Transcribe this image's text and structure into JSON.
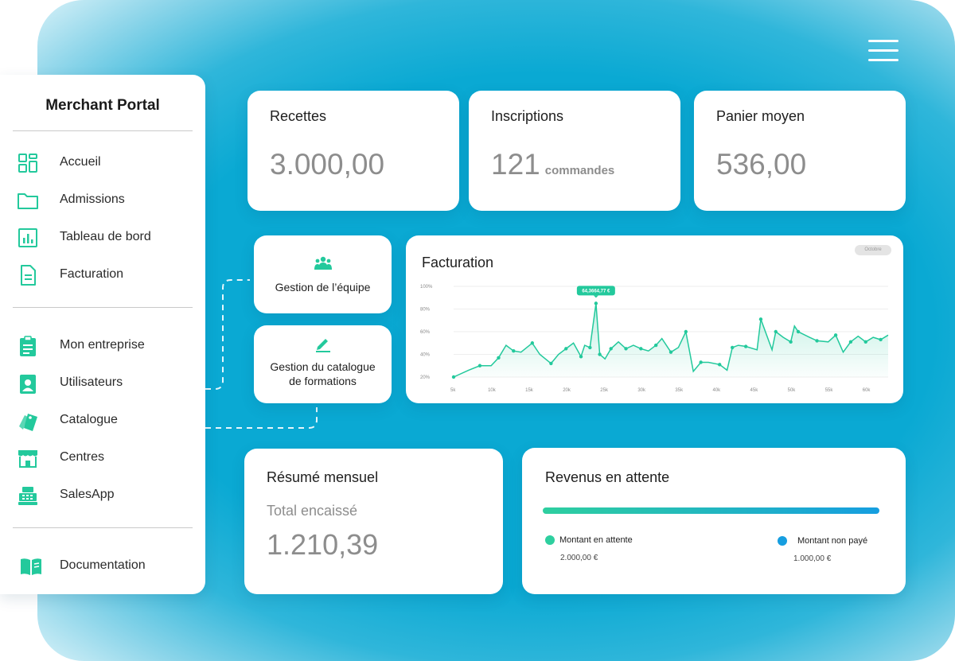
{
  "sidebar": {
    "title": "Merchant Portal",
    "groups": [
      [
        {
          "label": "Accueil",
          "icon": "dashboard-grid-icon"
        },
        {
          "label": "Admissions",
          "icon": "folder-icon"
        },
        {
          "label": "Tableau de bord",
          "icon": "bar-chart-icon"
        },
        {
          "label": "Facturation",
          "icon": "document-icon"
        }
      ],
      [
        {
          "label": "Mon entreprise",
          "icon": "clipboard-icon"
        },
        {
          "label": "Utilisateurs",
          "icon": "user-badge-icon"
        },
        {
          "label": "Catalogue",
          "icon": "tags-icon"
        },
        {
          "label": "Centres",
          "icon": "storefront-icon"
        },
        {
          "label": "SalesApp",
          "icon": "cash-register-icon"
        }
      ],
      [
        {
          "label": "Documentation",
          "icon": "book-icon"
        }
      ]
    ]
  },
  "stats": {
    "recettes": {
      "title": "Recettes",
      "value": "3.000,00"
    },
    "inscriptions": {
      "title": "Inscriptions",
      "value": "121",
      "unit": "commandes"
    },
    "panier": {
      "title": "Panier moyen",
      "value": "536,00"
    }
  },
  "actions": {
    "team": {
      "label": "Gestion de l’équipe",
      "icon": "team-icon"
    },
    "catalog": {
      "label_line1": "Gestion du catalogue",
      "label_line2": "de formations",
      "icon": "pencil-icon"
    }
  },
  "chart_data": {
    "type": "area",
    "title": "Facturation",
    "button_label": "Octobre",
    "tooltip": "64,3664,77 €",
    "x_ticks": [
      "5k",
      "10k",
      "15k",
      "20k",
      "25k",
      "30k",
      "35k",
      "40k",
      "45k",
      "50k",
      "55k",
      "60k"
    ],
    "y_ticks": [
      "20%",
      "40%",
      "60%",
      "80%",
      "100%"
    ],
    "ylim": [
      20,
      100
    ],
    "xlim": [
      5,
      63
    ],
    "points": [
      [
        5,
        20
      ],
      [
        7,
        26
      ],
      [
        8.5,
        30
      ],
      [
        10,
        30
      ],
      [
        11,
        37
      ],
      [
        12,
        48
      ],
      [
        13,
        43
      ],
      [
        14,
        42
      ],
      [
        15.5,
        50
      ],
      [
        16.5,
        40
      ],
      [
        18,
        32
      ],
      [
        19,
        40
      ],
      [
        20,
        45
      ],
      [
        21,
        50
      ],
      [
        22,
        38
      ],
      [
        22.5,
        48
      ],
      [
        23.2,
        46
      ],
      [
        24,
        85
      ],
      [
        24.5,
        40
      ],
      [
        25.2,
        36
      ],
      [
        26,
        45
      ],
      [
        27,
        51
      ],
      [
        28,
        45
      ],
      [
        29,
        48
      ],
      [
        30,
        45
      ],
      [
        31,
        43
      ],
      [
        32,
        48
      ],
      [
        32.8,
        54
      ],
      [
        34,
        42
      ],
      [
        35,
        46
      ],
      [
        36,
        60
      ],
      [
        37,
        25
      ],
      [
        38,
        33
      ],
      [
        39,
        33
      ],
      [
        40.5,
        31
      ],
      [
        41.5,
        26
      ],
      [
        42.2,
        46
      ],
      [
        43,
        48
      ],
      [
        44,
        47
      ],
      [
        45.5,
        44
      ],
      [
        46,
        71
      ],
      [
        47.5,
        44
      ],
      [
        48,
        60
      ],
      [
        49,
        55
      ],
      [
        50,
        51
      ],
      [
        50.5,
        65
      ],
      [
        51,
        60
      ],
      [
        52.5,
        55
      ],
      [
        53.5,
        52
      ],
      [
        55,
        51
      ],
      [
        56,
        57
      ],
      [
        57,
        42
      ],
      [
        58,
        51
      ],
      [
        59,
        56
      ],
      [
        60,
        51
      ],
      [
        61,
        55
      ],
      [
        62,
        53
      ],
      [
        63,
        57
      ]
    ]
  },
  "summary": {
    "title": "Résumé mensuel",
    "label": "Total encaissé",
    "value": "1.210,39"
  },
  "revenue": {
    "title": "Revenus en attente",
    "pending_label": "Montant en attente",
    "pending_amount": "2.000,00 €",
    "unpaid_label": "Montant non payé",
    "unpaid_amount": "1.000,00 €",
    "pending_color": "#2ecf9f",
    "unpaid_color": "#169ee0"
  },
  "colors": {
    "accent": "#23c99c",
    "background": "#0aa9d3"
  }
}
